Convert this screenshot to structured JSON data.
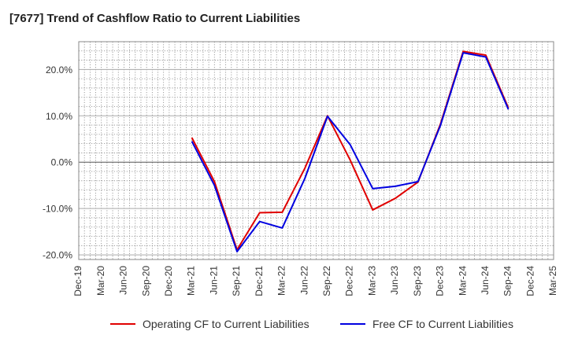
{
  "title": "[7677]  Trend of Cashflow Ratio to Current Liabilities",
  "chart_data": {
    "type": "line",
    "title": "[7677]  Trend of Cashflow Ratio to Current Liabilities",
    "xlabel": "",
    "ylabel": "",
    "ylim": [
      -21,
      26
    ],
    "y_ticks": [
      -20,
      -10,
      0,
      10,
      20
    ],
    "y_tick_labels": [
      "-20.0%",
      "-10.0%",
      "0.0%",
      "10.0%",
      "20.0%"
    ],
    "categories": [
      "Dec-19",
      "Mar-20",
      "Jun-20",
      "Sep-20",
      "Dec-20",
      "Mar-21",
      "Jun-21",
      "Sep-21",
      "Dec-21",
      "Mar-22",
      "Jun-22",
      "Sep-22",
      "Dec-22",
      "Mar-23",
      "Jun-23",
      "Sep-23",
      "Dec-23",
      "Mar-24",
      "Jun-24",
      "Sep-24",
      "Dec-24",
      "Mar-25"
    ],
    "grid": true,
    "legend_position": "bottom",
    "series": [
      {
        "name": "Operating CF to Current Liabilities",
        "color": "#e00000",
        "values": [
          null,
          null,
          null,
          null,
          null,
          5.3,
          -4.2,
          -18.9,
          -10.9,
          -10.8,
          -1.3,
          10.0,
          0.5,
          -10.3,
          -7.8,
          -4.3,
          8.3,
          23.9,
          23.1,
          11.7,
          null,
          null
        ]
      },
      {
        "name": "Free CF to Current Liabilities",
        "color": "#0000e0",
        "values": [
          null,
          null,
          null,
          null,
          null,
          4.5,
          -5.0,
          -19.3,
          -12.8,
          -14.2,
          -3.5,
          9.9,
          3.8,
          -5.7,
          -5.2,
          -4.2,
          8.0,
          23.6,
          22.7,
          11.4,
          null,
          null
        ]
      }
    ]
  }
}
